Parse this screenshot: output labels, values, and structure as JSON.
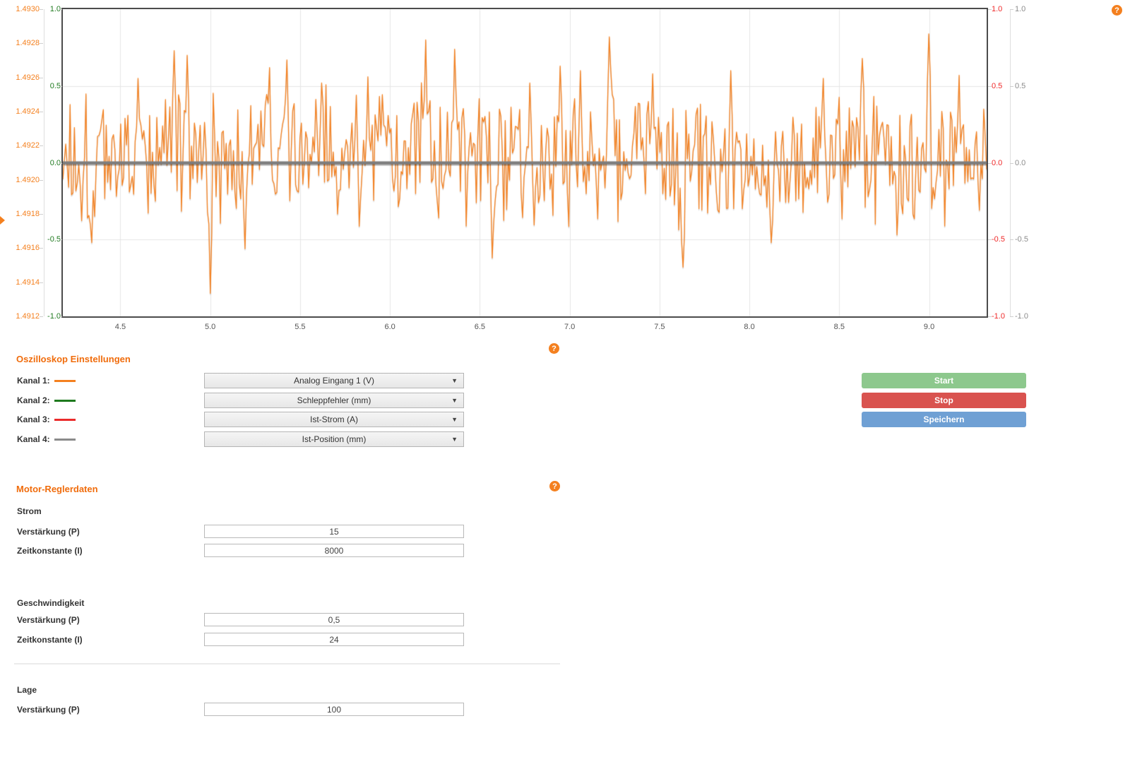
{
  "help": {
    "glyph": "?"
  },
  "chart_data": {
    "type": "line",
    "title": "",
    "xlabel": "",
    "ylabel": "",
    "grid": true,
    "legend_position": "none",
    "x_axis": {
      "tick_labels": [
        "4.5",
        "5.0",
        "5.5",
        "6.0",
        "6.5",
        "7.0",
        "7.5",
        "8.0",
        "8.5",
        "9.0"
      ],
      "tick_values": [
        4.5,
        5.0,
        5.5,
        6.0,
        6.5,
        7.0,
        7.5,
        8.0,
        8.5,
        9.0
      ],
      "range": [
        4.18,
        9.32
      ]
    },
    "y_grid_values": [
      0.5,
      0,
      -0.5
    ],
    "y_axes": [
      {
        "name": "kanal-1-analog-eingang",
        "color": "#f4801f",
        "side": "left-outer",
        "tick_labels": [
          "1.4930",
          "1.4928",
          "1.4926",
          "1.4924",
          "1.4922",
          "1.4920",
          "1.4918",
          "1.4916",
          "1.4914",
          "1.4912"
        ],
        "range": [
          1.4912,
          1.493
        ]
      },
      {
        "name": "kanal-2-schleppfehler",
        "color": "#1f7a1f",
        "side": "left-inner",
        "tick_labels": [
          "1.0",
          "0.5",
          "0.0",
          "-0.5",
          "-1.0"
        ],
        "range": [
          -1,
          1
        ]
      },
      {
        "name": "kanal-3-ist-strom",
        "color": "#ef2929",
        "side": "right-inner",
        "tick_labels": [
          "1.0",
          "0.5",
          "0.0",
          "-0.5",
          "-1.0"
        ],
        "range": [
          -1,
          1
        ]
      },
      {
        "name": "kanal-4-ist-position",
        "color": "#8c8c8c",
        "side": "right-outer",
        "tick_labels": [
          "1.0",
          "0.5",
          "0.0",
          "-0.5",
          "-1.0"
        ],
        "range": [
          -1,
          1
        ]
      }
    ],
    "series": [
      {
        "name": "Analog Eingang 1 (V)",
        "color": "#f4801f",
        "type": "noise",
        "signal": {
          "seed": 1337,
          "points": 640,
          "mean": 0.05,
          "amplitude": 0.55,
          "sharpen": 0.8,
          "keypoints": [
            [
              4.34,
              -0.52
            ],
            [
              4.6,
              0.55
            ],
            [
              4.8,
              0.73
            ],
            [
              4.87,
              0.7
            ],
            [
              5.0,
              -0.85
            ],
            [
              5.19,
              -0.56
            ],
            [
              5.33,
              0.62
            ],
            [
              5.43,
              0.67
            ],
            [
              5.62,
              0.52
            ],
            [
              5.88,
              0.56
            ],
            [
              6.2,
              0.8
            ],
            [
              6.36,
              0.74
            ],
            [
              6.57,
              -0.62
            ],
            [
              6.78,
              0.52
            ],
            [
              6.95,
              0.63
            ],
            [
              7.06,
              0.6
            ],
            [
              7.22,
              0.82
            ],
            [
              7.46,
              0.58
            ],
            [
              7.63,
              -0.68
            ],
            [
              7.9,
              0.6
            ],
            [
              8.12,
              -0.52
            ],
            [
              8.41,
              0.55
            ],
            [
              8.63,
              0.68
            ],
            [
              8.82,
              -0.47
            ],
            [
              9.0,
              0.84
            ],
            [
              9.17,
              0.57
            ]
          ]
        }
      },
      {
        "name": "Schleppfehler (mm)",
        "color": "#1f7a1f",
        "type": "constant",
        "value": 0,
        "line_width": 2
      },
      {
        "name": "Ist-Strom (A)",
        "color": "#ef2929",
        "type": "constant",
        "value": 0,
        "line_width": 2
      },
      {
        "name": "Ist-Position (mm)",
        "color": "#7d7d7d",
        "type": "constant",
        "value": 0,
        "line_width": 4
      }
    ]
  },
  "oszilloskop": {
    "heading": "Oszilloskop Einstellungen",
    "channels": [
      {
        "label": "Kanal 1:",
        "color": "#f4801f",
        "selected": "Analog Eingang 1 (V)"
      },
      {
        "label": "Kanal 2:",
        "color": "#1f7a1f",
        "selected": "Schleppfehler (mm)"
      },
      {
        "label": "Kanal 3:",
        "color": "#ea2b2b",
        "selected": "Ist-Strom (A)"
      },
      {
        "label": "Kanal 4:",
        "color": "#8a8a8a",
        "selected": "Ist-Position (mm)"
      }
    ],
    "buttons": [
      {
        "label": "Start",
        "color": "#8dc88d"
      },
      {
        "label": "Stop",
        "color": "#d9534f"
      },
      {
        "label": "Speichern",
        "color": "#6fa0d4"
      }
    ]
  },
  "motor": {
    "heading": "Motor-Reglerdaten",
    "groups": [
      {
        "title": "Strom",
        "fields": [
          {
            "label": "Verstärkung (P)",
            "value": "15"
          },
          {
            "label": "Zeitkonstante (I)",
            "value": "8000"
          }
        ]
      },
      {
        "title": "Geschwindigkeit",
        "fields": [
          {
            "label": "Verstärkung (P)",
            "value": "0,5"
          },
          {
            "label": "Zeitkonstante (I)",
            "value": "24"
          }
        ]
      },
      {
        "title": "Lage",
        "fields": [
          {
            "label": "Verstärkung (P)",
            "value": "100"
          }
        ]
      }
    ]
  }
}
